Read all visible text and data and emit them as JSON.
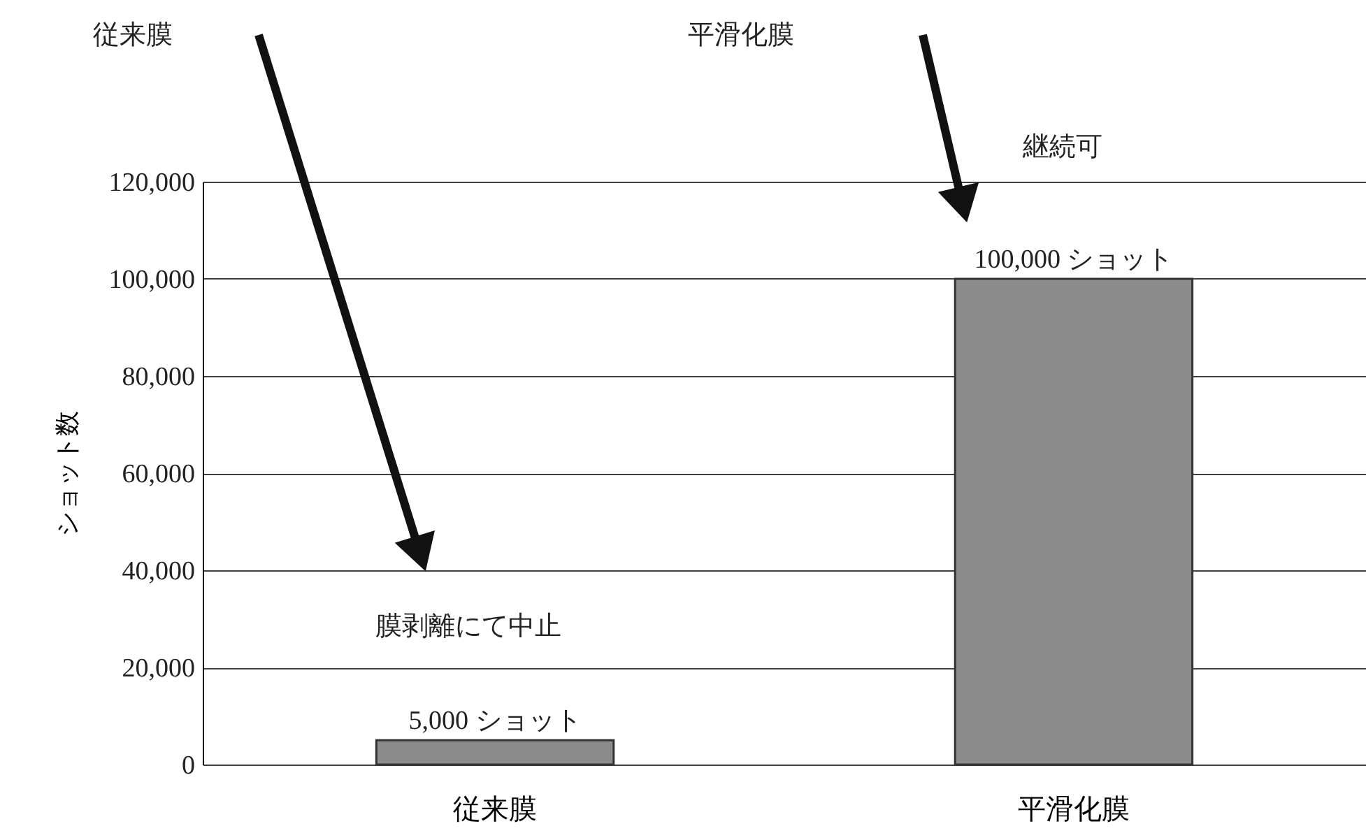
{
  "chart_data": {
    "type": "bar",
    "ylabel": "ショット数",
    "categories": [
      "従来膜",
      "平滑化膜"
    ],
    "values": [
      5000,
      100000
    ],
    "value_labels": [
      "5,000 ショット",
      "100,000 ショット"
    ],
    "color": "#8c8c8c",
    "ylim": [
      0,
      120000
    ],
    "yticks": [
      0,
      {
        "value": 20000,
        "label": "20,000"
      },
      {
        "value": 40000,
        "label": "40,000"
      },
      {
        "value": 60000,
        "label": "60,000"
      },
      {
        "value": 80000,
        "label": "80,000"
      },
      {
        "value": 100000,
        "label": "100,000"
      },
      {
        "value": 120000,
        "label": "120,000"
      }
    ],
    "grid": "y",
    "annotations": [
      "従来膜",
      "平滑化膜",
      "継続可",
      "膜剥離にて中止"
    ]
  }
}
